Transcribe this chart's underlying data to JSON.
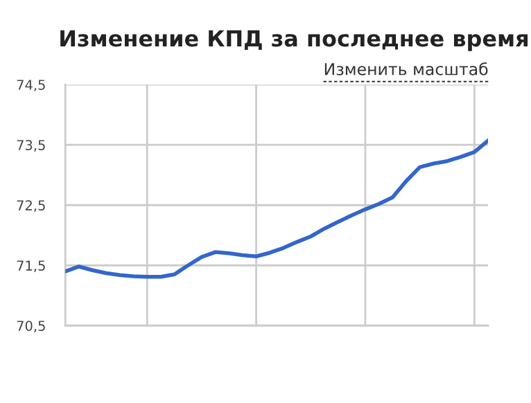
{
  "chart_data": {
    "type": "line",
    "title": "Изменение КПД за последнее время",
    "annotations": [
      "Изменить масштаб"
    ],
    "categories": [
      null,
      null,
      null,
      null,
      null,
      null,
      null,
      null,
      null,
      null,
      null,
      null,
      null,
      null,
      null,
      null,
      null,
      null,
      null,
      null,
      null,
      null,
      null,
      null,
      null,
      null,
      null,
      null,
      null,
      null,
      null,
      null
    ],
    "series": [
      {
        "color": "#3366cc",
        "values": [
          71.4,
          71.48,
          71.42,
          71.37,
          71.34,
          71.32,
          71.31,
          71.31,
          71.35,
          71.5,
          71.64,
          71.72,
          71.7,
          71.67,
          71.65,
          71.71,
          71.79,
          71.89,
          71.98,
          72.11,
          72.22,
          72.33,
          72.43,
          72.52,
          72.63,
          72.9,
          73.13,
          73.19,
          73.23,
          73.3,
          73.38,
          73.57
        ]
      }
    ],
    "ylim": [
      70.5,
      74.5
    ],
    "yticks": [
      {
        "value": 70.5,
        "label": "70,5"
      },
      {
        "value": 71.5,
        "label": "71,5"
      },
      {
        "value": 72.5,
        "label": "72,5"
      },
      {
        "value": 73.5,
        "label": "73,5"
      },
      {
        "value": 74.5,
        "label": "74,5"
      }
    ],
    "tick_labels": "y",
    "grid": true,
    "marker": "none",
    "line_style": "solid"
  }
}
